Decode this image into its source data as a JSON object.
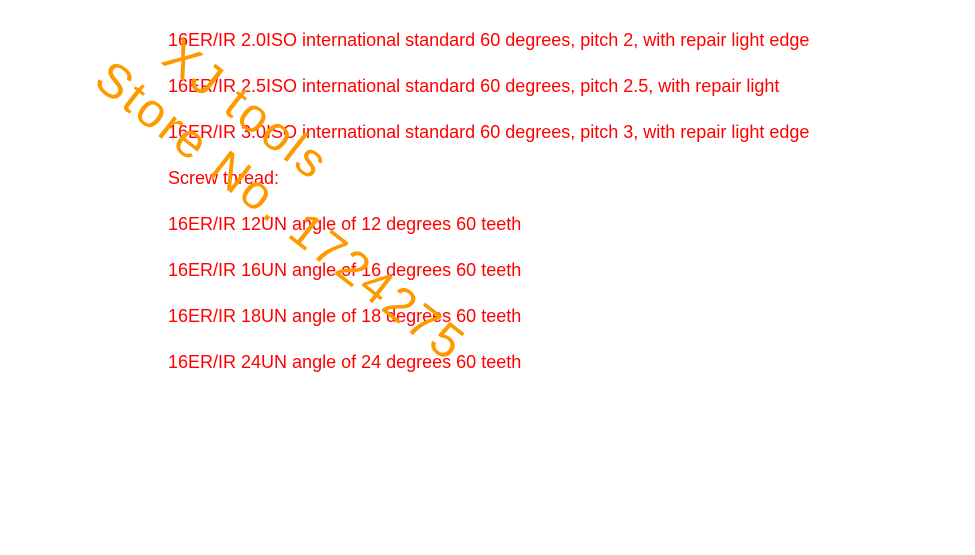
{
  "text_color": "#ff0000",
  "watermark_color": "#ff9900",
  "background_color": "#ffffff",
  "font_size_pt": 14,
  "watermark_font_size_pt": 36,
  "watermark_rotation_deg": 38,
  "specs": {
    "iso_specs": [
      "16ER/IR 2.0ISO  international standard 60 degrees, pitch 2, with repair light edge",
      "16ER/IR 2.5ISO  international standard 60 degrees, pitch 2.5, with repair light",
      "16ER/IR 3.0ISO  international standard 60 degrees, pitch 3, with repair light edge"
    ],
    "section_header": "Screw thread:",
    "un_specs": [
      "16ER/IR 12UN  angle of 12 degrees 60 teeth",
      "16ER/IR 16UN  angle of 16 degrees 60 teeth",
      "16ER/IR 18UN  angle of 18 degrees 60 teeth",
      "16ER/IR 24UN  angle of 24 degrees 60 teeth"
    ]
  },
  "watermark": {
    "line1": "XJ tools",
    "line2": "Store No. 1724275"
  }
}
